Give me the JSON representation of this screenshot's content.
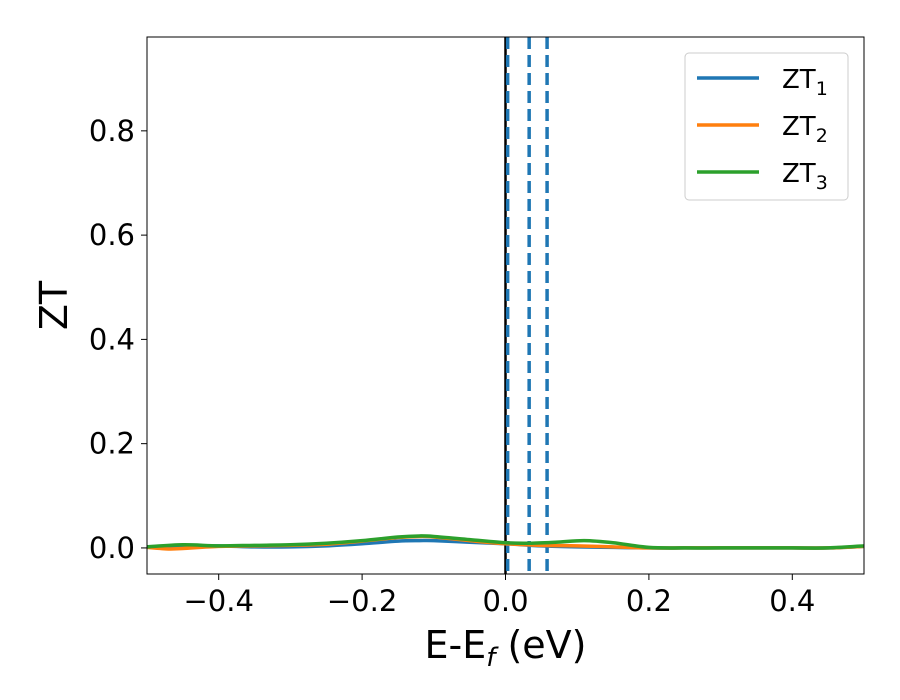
{
  "chart_data": {
    "type": "line",
    "xlabel": "E-E",
    "xlabel_sub": "f",
    "xlabel_unit": " (eV)",
    "ylabel": "ZT",
    "xlim": [
      -0.5,
      0.5
    ],
    "ylim": [
      -0.05,
      0.98
    ],
    "x_ticks": [
      -0.4,
      -0.2,
      0.0,
      0.2,
      0.4
    ],
    "x_tick_labels": [
      "−0.4",
      "−0.2",
      "0.0",
      "0.2",
      "0.4"
    ],
    "y_ticks": [
      0.0,
      0.2,
      0.4,
      0.6,
      0.8
    ],
    "y_tick_labels": [
      "0.0",
      "0.2",
      "0.4",
      "0.6",
      "0.8"
    ],
    "grid": false,
    "legend_position": "top-right",
    "vertical_lines": [
      {
        "x": 0.0,
        "style": "solid",
        "color": "#000000"
      },
      {
        "x": 0.003,
        "style": "dashed",
        "color": "#1f77b4"
      },
      {
        "x": 0.033,
        "style": "dashed",
        "color": "#1f77b4"
      },
      {
        "x": 0.058,
        "style": "dashed",
        "color": "#1f77b4"
      }
    ],
    "series": [
      {
        "name": "ZT",
        "name_sub": "1",
        "color": "#1f77b4",
        "x": [
          -0.5,
          -0.45,
          -0.4,
          -0.35,
          -0.3,
          -0.25,
          -0.2,
          -0.15,
          -0.12,
          -0.1,
          -0.05,
          0.0,
          0.05,
          0.1,
          0.15,
          0.2,
          0.25,
          0.3,
          0.35,
          0.4,
          0.45,
          0.5
        ],
        "y": [
          0.002,
          0.004,
          0.004,
          0.002,
          0.002,
          0.004,
          0.008,
          0.013,
          0.014,
          0.014,
          0.011,
          0.008,
          0.004,
          0.002,
          0.001,
          0.0,
          0.0,
          0.0,
          0.0,
          0.0,
          0.0,
          0.003
        ]
      },
      {
        "name": "ZT",
        "name_sub": "2",
        "color": "#ff7f0e",
        "x": [
          -0.5,
          -0.47,
          -0.45,
          -0.4,
          -0.35,
          -0.3,
          -0.25,
          -0.2,
          -0.15,
          -0.12,
          -0.1,
          -0.05,
          0.0,
          0.05,
          0.1,
          0.15,
          0.2,
          0.25,
          0.3,
          0.35,
          0.4,
          0.45,
          0.5
        ],
        "y": [
          0.001,
          -0.002,
          -0.001,
          0.003,
          0.004,
          0.005,
          0.007,
          0.013,
          0.02,
          0.022,
          0.021,
          0.014,
          0.008,
          0.005,
          0.004,
          0.002,
          0.0,
          0.0,
          0.0,
          0.0,
          0.0,
          0.0,
          0.003
        ]
      },
      {
        "name": "ZT",
        "name_sub": "3",
        "color": "#2ca02c",
        "x": [
          -0.5,
          -0.45,
          -0.4,
          -0.35,
          -0.3,
          -0.25,
          -0.2,
          -0.15,
          -0.12,
          -0.1,
          -0.05,
          0.0,
          0.03,
          0.07,
          0.11,
          0.15,
          0.2,
          0.25,
          0.3,
          0.35,
          0.4,
          0.45,
          0.5
        ],
        "y": [
          0.002,
          0.006,
          0.004,
          0.005,
          0.006,
          0.009,
          0.014,
          0.021,
          0.023,
          0.022,
          0.016,
          0.01,
          0.009,
          0.011,
          0.014,
          0.01,
          0.001,
          0.0,
          0.0,
          0.0,
          0.0,
          0.0,
          0.004
        ]
      }
    ]
  }
}
